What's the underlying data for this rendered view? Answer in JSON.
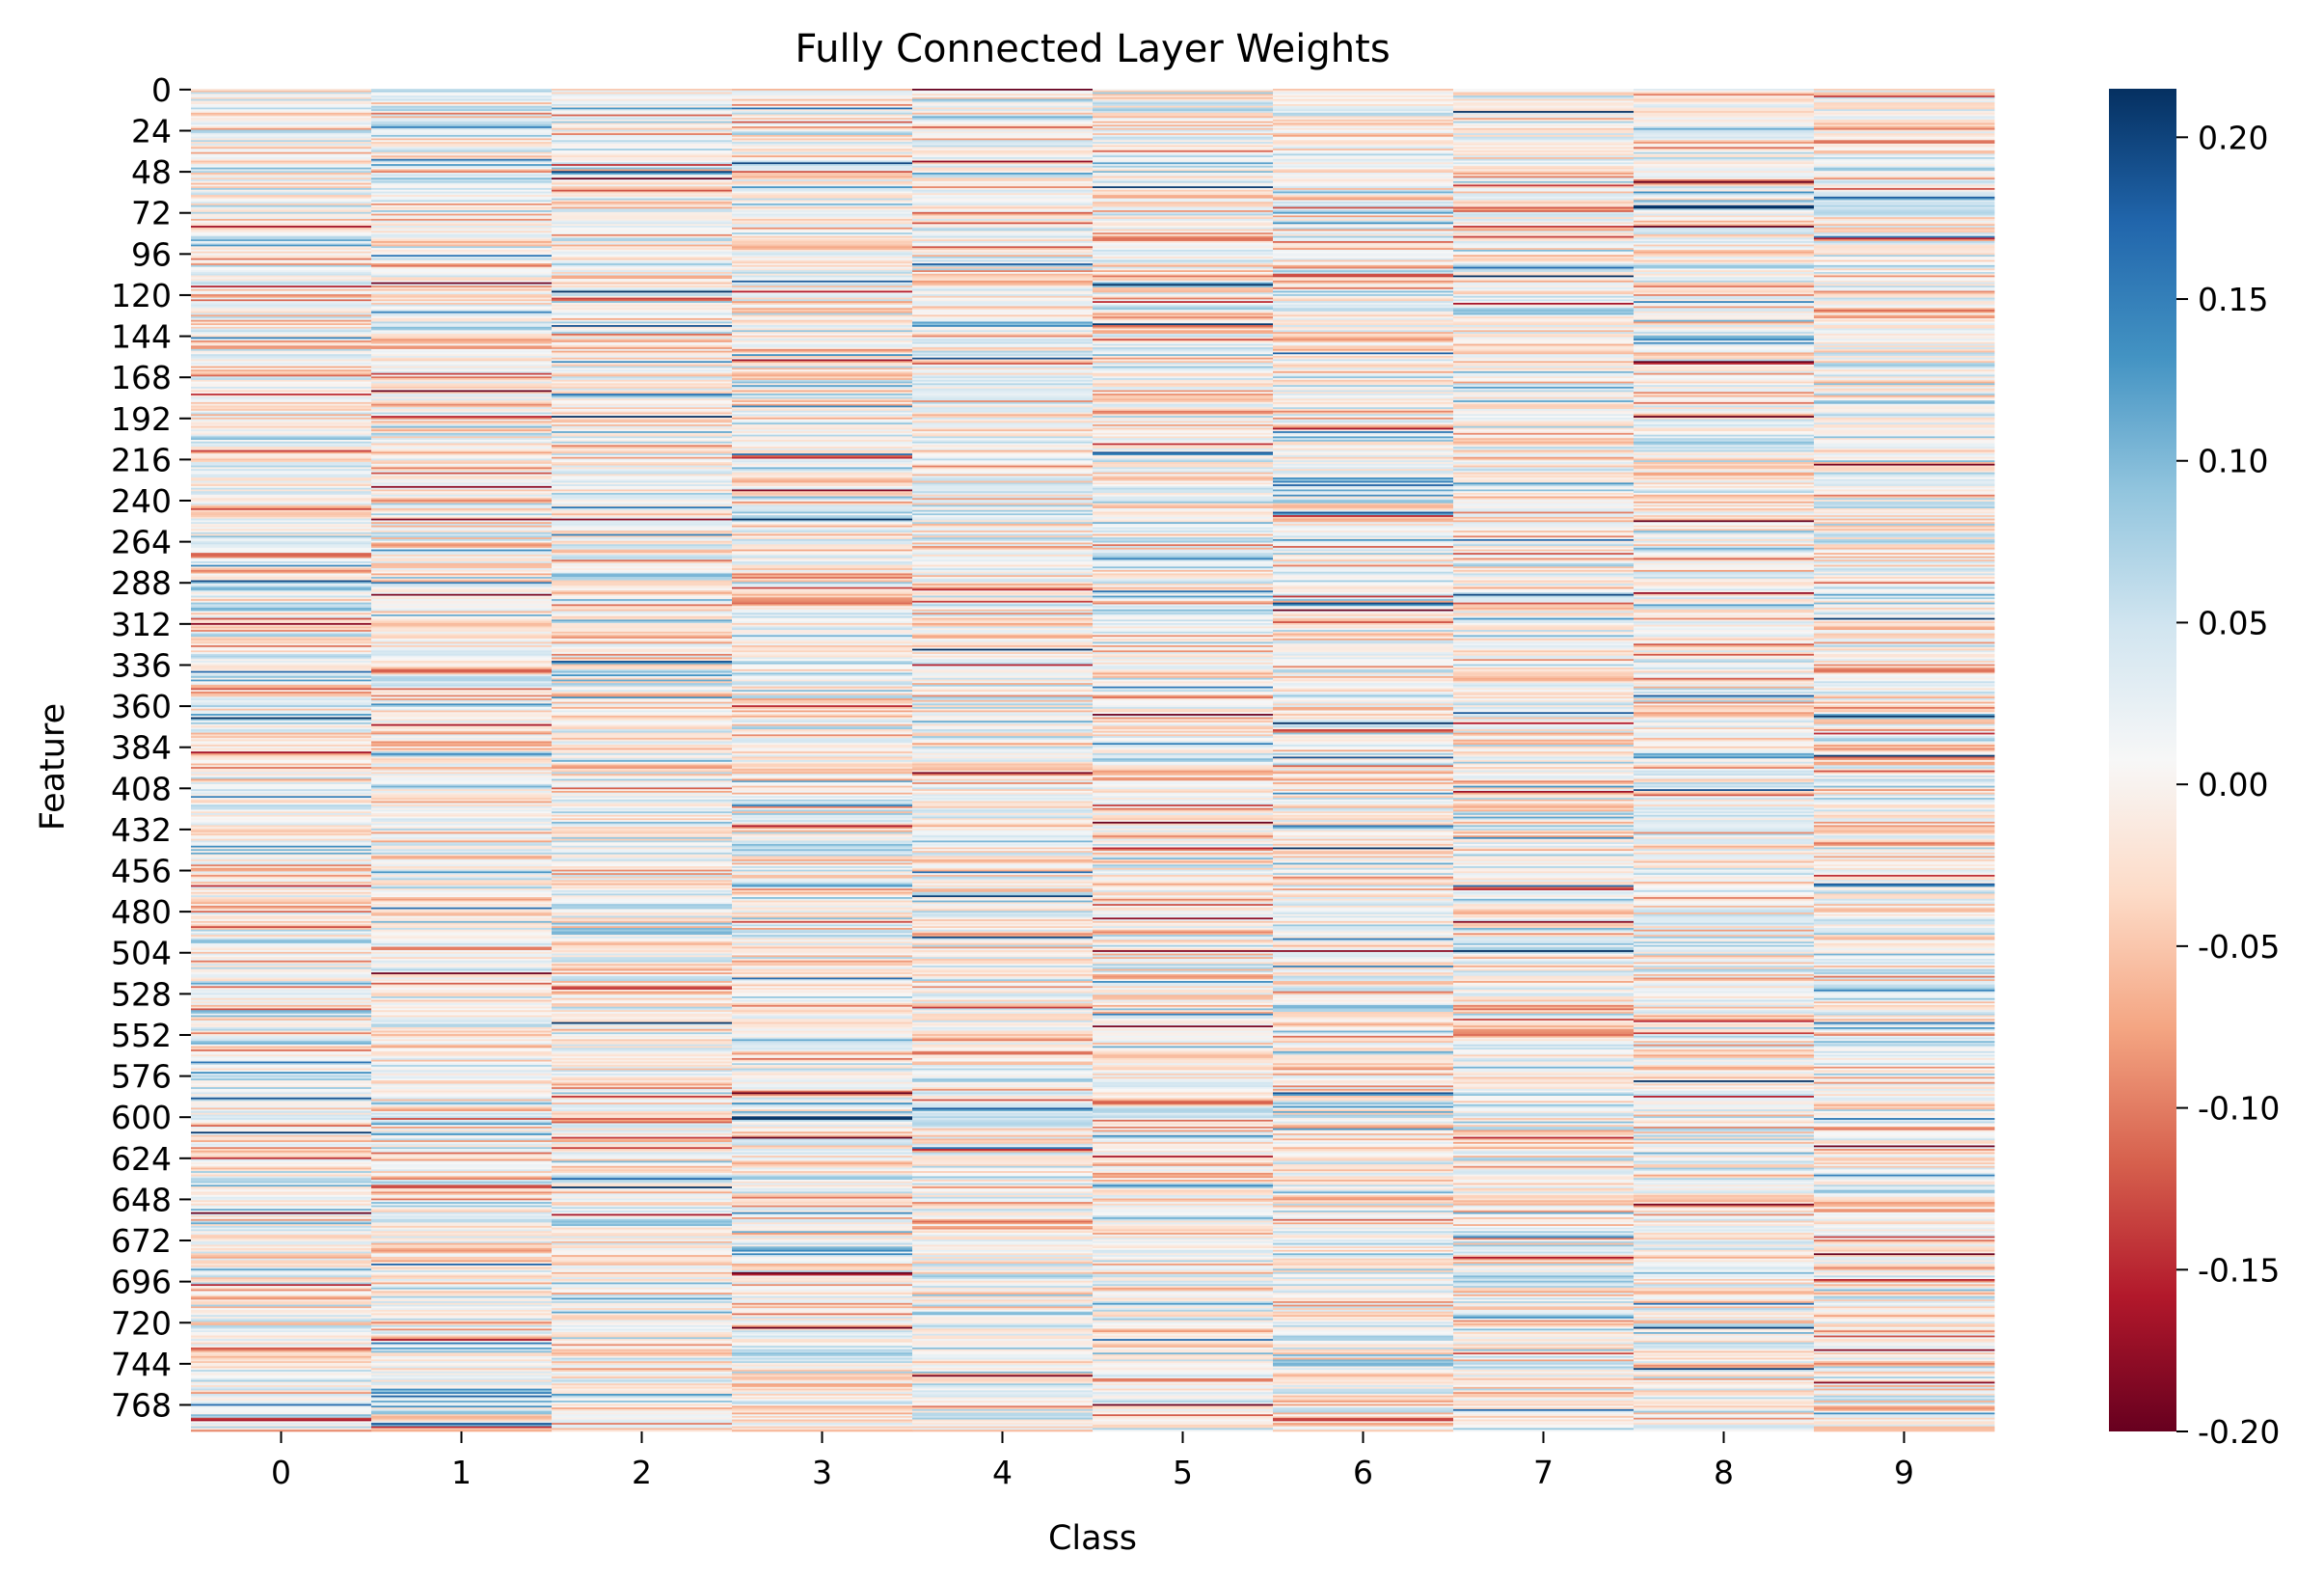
{
  "chart_data": {
    "type": "heatmap",
    "title": "Fully Connected Layer Weights",
    "xlabel": "Class",
    "ylabel": "Feature",
    "x_categories": [
      "0",
      "1",
      "2",
      "3",
      "4",
      "5",
      "6",
      "7",
      "8",
      "9"
    ],
    "y_tick_labels": [
      "0",
      "24",
      "48",
      "72",
      "96",
      "120",
      "144",
      "168",
      "192",
      "216",
      "240",
      "264",
      "288",
      "312",
      "336",
      "360",
      "384",
      "408",
      "432",
      "456",
      "480",
      "504",
      "528",
      "552",
      "576",
      "600",
      "624",
      "648",
      "672",
      "696",
      "720",
      "744",
      "768"
    ],
    "n_features": 784,
    "feature_tick_step": 24,
    "colormap": "RdBu",
    "value_range": [
      -0.2,
      0.215
    ],
    "colorbar_ticks": [
      "0.20",
      "0.15",
      "0.10",
      "0.05",
      "0.00",
      "-0.05",
      "-0.10",
      "-0.15",
      "-0.20"
    ],
    "colorbar_tick_values": [
      0.2,
      0.15,
      0.1,
      0.05,
      0.0,
      -0.05,
      -0.1,
      -0.15,
      -0.2
    ],
    "colormap_stops": [
      "#67001f",
      "#b2182b",
      "#d6604d",
      "#f4a582",
      "#fddbc7",
      "#f7f7f7",
      "#d1e5f0",
      "#92c5de",
      "#4393c3",
      "#2166ac",
      "#053061"
    ],
    "grid": false,
    "legend": "colorbar-right"
  }
}
